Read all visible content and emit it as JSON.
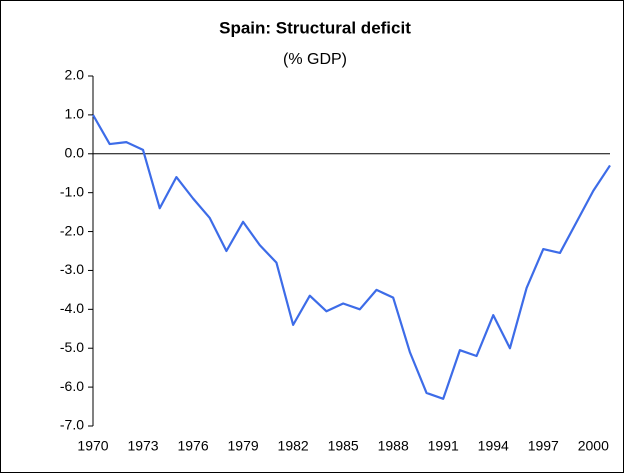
{
  "chart_data": {
    "type": "line",
    "title": "Spain: Structural deficit",
    "subtitle": "(% GDP)",
    "x": [
      1970,
      1971,
      1972,
      1973,
      1974,
      1975,
      1976,
      1977,
      1978,
      1979,
      1980,
      1981,
      1982,
      1983,
      1984,
      1985,
      1986,
      1987,
      1988,
      1989,
      1990,
      1991,
      1992,
      1993,
      1994,
      1995,
      1996,
      1997,
      1998,
      1999,
      2000,
      2001
    ],
    "series": [
      {
        "name": "Structural deficit",
        "color": "#3d6ce8",
        "values": [
          1.0,
          0.25,
          0.3,
          0.1,
          -1.4,
          -0.6,
          -1.15,
          -1.65,
          -2.5,
          -1.75,
          -2.35,
          -2.8,
          -4.4,
          -3.65,
          -4.05,
          -3.85,
          -4.0,
          -3.5,
          -3.7,
          -5.1,
          -6.15,
          -6.3,
          -5.05,
          -5.2,
          -4.15,
          -5.0,
          -3.45,
          -2.45,
          -2.55,
          -1.75,
          -0.95,
          -0.3
        ]
      }
    ],
    "xlim": [
      1970,
      2001
    ],
    "xticks": [
      1970,
      1973,
      1976,
      1979,
      1982,
      1985,
      1988,
      1991,
      1994,
      1997,
      2000
    ],
    "ylim": [
      -7,
      2
    ],
    "yticks": [
      {
        "value": 2,
        "label": "2.0"
      },
      {
        "value": 1,
        "label": "1.0"
      },
      {
        "value": 0,
        "label": "0.0"
      },
      {
        "value": -1,
        "label": "-1.0"
      },
      {
        "value": -2,
        "label": "-2.0"
      },
      {
        "value": -3,
        "label": "-3.0"
      },
      {
        "value": -4,
        "label": "-4.0"
      },
      {
        "value": -5,
        "label": "-5.0"
      },
      {
        "value": -6,
        "label": "-6.0"
      },
      {
        "value": -7,
        "label": "-7.0"
      }
    ]
  }
}
